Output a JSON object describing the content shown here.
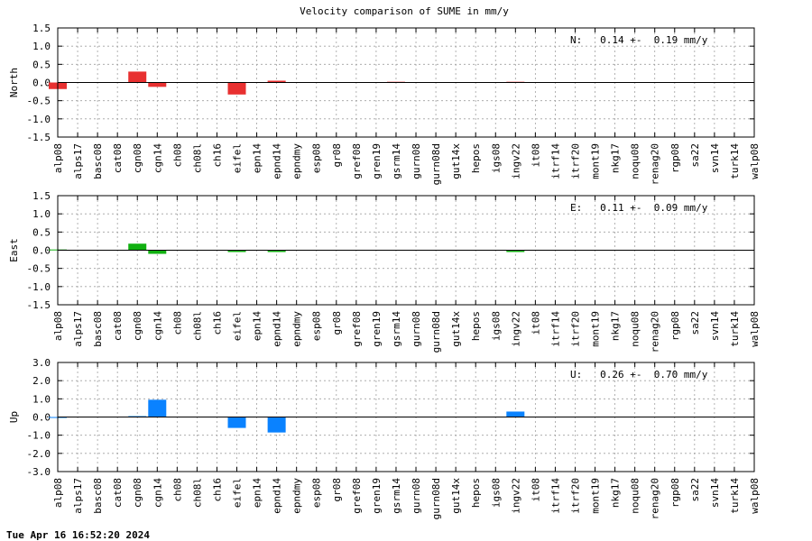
{
  "title": "Velocity comparison of SUME in mm/y",
  "footer": "Tue Apr 16 16:52:20 2024",
  "chart_data": {
    "type": "bar",
    "categories": [
      "alp08",
      "alps17",
      "basc08",
      "cat08",
      "cgn08",
      "cgn14",
      "ch08",
      "ch08l",
      "ch16",
      "eifel",
      "epn14",
      "epnd14",
      "epndmy",
      "esp08",
      "gr08",
      "gref08",
      "gren19",
      "gsrm14",
      "gurn08",
      "gurn08d",
      "gut14x",
      "hepos",
      "igs08",
      "ingv22",
      "it08",
      "itrf14",
      "itrf20",
      "mont19",
      "nkg17",
      "noqu08",
      "renag20",
      "rgp08",
      "sa22",
      "svn14",
      "turk14",
      "walp08"
    ],
    "grid": true,
    "panels": [
      {
        "ylabel": "North",
        "color": "#e83030",
        "ylim": [
          -1.5,
          1.5
        ],
        "yticks": [
          "1.5",
          "1.0",
          "0.5",
          "0.0",
          "-0.5",
          "-1.0",
          "-1.5"
        ],
        "stat": "N:   0.14 +-  0.19 mm/y",
        "values": [
          -0.18,
          0,
          0,
          0,
          0.3,
          -0.12,
          0,
          0,
          0,
          -0.33,
          0,
          0.05,
          0,
          0,
          0,
          0,
          0,
          0.02,
          0,
          0,
          0,
          0,
          0,
          0.02,
          0,
          0,
          0,
          0,
          0,
          0,
          0,
          0,
          0,
          0,
          0,
          0
        ]
      },
      {
        "ylabel": "East",
        "color": "#11b011",
        "ylim": [
          -1.5,
          1.5
        ],
        "yticks": [
          "1.5",
          "1.0",
          "0.5",
          "0.0",
          "-0.5",
          "-1.0",
          "-1.5"
        ],
        "stat": "E:   0.11 +-  0.09 mm/y",
        "values": [
          0.02,
          0,
          0,
          0,
          0.18,
          -0.1,
          0,
          0,
          0,
          -0.05,
          0,
          -0.05,
          0,
          0,
          0,
          0,
          0,
          0,
          0,
          0,
          0,
          0,
          0,
          -0.05,
          0,
          0,
          0,
          0,
          0,
          0,
          0,
          0,
          0,
          0,
          0,
          0
        ]
      },
      {
        "ylabel": "Up",
        "color": "#0a82ff",
        "ylim": [
          -3.0,
          3.0
        ],
        "yticks": [
          "3.0",
          "2.0",
          "1.0",
          "0.0",
          "-1.0",
          "-2.0",
          "-3.0"
        ],
        "stat": "U:   0.26 +-  0.70 mm/y",
        "values": [
          -0.05,
          0,
          0,
          0,
          0.05,
          0.95,
          0,
          0,
          0,
          -0.6,
          0,
          -0.85,
          0,
          0,
          0,
          0,
          0,
          0,
          0,
          0,
          0,
          0,
          0,
          0.3,
          0,
          0,
          0,
          0,
          0,
          0,
          0,
          0,
          0,
          0,
          0,
          0
        ]
      }
    ]
  }
}
